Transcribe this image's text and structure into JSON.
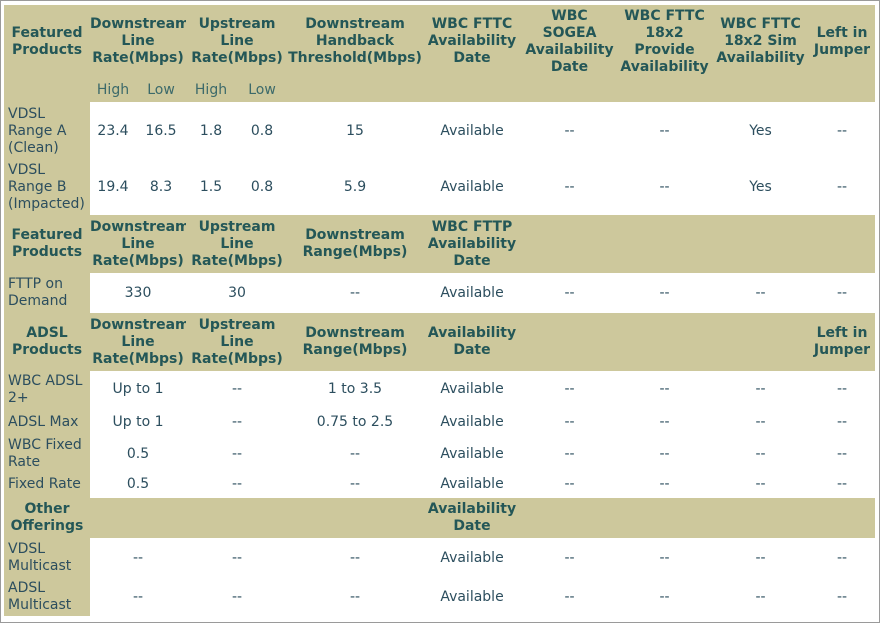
{
  "sections": [
    {
      "header": [
        "Featured Products",
        "Downstream Line Rate(Mbps)",
        "Upstream Line Rate(Mbps)",
        "Downstream Handback Threshold(Mbps)",
        "WBC FTTC Availability Date",
        "WBC SOGEA Availability Date",
        "WBC FTTC 18x2 Provide Availability",
        "WBC FTTC 18x2 Sim Availability",
        "Left in Jumper"
      ],
      "subheader": [
        "High",
        "Low",
        "High",
        "Low"
      ],
      "rows": [
        [
          "VDSL Range A (Clean)",
          "23.4",
          "16.5",
          "1.8",
          "0.8",
          "15",
          "Available",
          "--",
          "--",
          "Yes",
          "--"
        ],
        [
          "VDSL Range B (Impacted)",
          "19.4",
          "8.3",
          "1.5",
          "0.8",
          "5.9",
          "Available",
          "--",
          "--",
          "Yes",
          "--"
        ]
      ]
    },
    {
      "header": [
        "Featured Products",
        "Downstream Line Rate(Mbps)",
        "Upstream Line Rate(Mbps)",
        "Downstream Range(Mbps)",
        "WBC FTTP Availability Date",
        null,
        null,
        null,
        null
      ],
      "rows": [
        [
          "FTTP on Demand",
          "330",
          "30",
          "--",
          "Available",
          "--",
          "--",
          "--",
          "--"
        ]
      ]
    },
    {
      "header": [
        "ADSL Products",
        "Downstream Line Rate(Mbps)",
        "Upstream Line Rate(Mbps)",
        "Downstream Range(Mbps)",
        "Availability Date",
        null,
        null,
        null,
        "Left in Jumper"
      ],
      "rows": [
        [
          "WBC ADSL 2+",
          "Up to 1",
          "--",
          "1 to 3.5",
          "Available",
          "--",
          "--",
          "--",
          "--"
        ],
        [
          "ADSL Max",
          "Up to 1",
          "--",
          "0.75 to 2.5",
          "Available",
          "--",
          "--",
          "--",
          "--"
        ],
        [
          "WBC Fixed Rate",
          "0.5",
          "--",
          "--",
          "Available",
          "--",
          "--",
          "--",
          "--"
        ],
        [
          "Fixed Rate",
          "0.5",
          "--",
          "--",
          "Available",
          "--",
          "--",
          "--",
          "--"
        ]
      ]
    },
    {
      "header": [
        "Other Offerings",
        null,
        null,
        null,
        "Availability Date",
        null,
        null,
        null,
        null
      ],
      "rows": [
        [
          "VDSL Multicast",
          "--",
          "--",
          "--",
          "Available",
          "--",
          "--",
          "--",
          "--"
        ],
        [
          "ADSL Multicast",
          "--",
          "--",
          "--",
          "Available",
          "--",
          "--",
          "--",
          "--"
        ]
      ]
    }
  ]
}
